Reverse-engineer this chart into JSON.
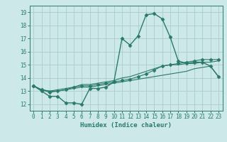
{
  "xlabel": "Humidex (Indice chaleur)",
  "bg_color": "#cce8e8",
  "grid_color": "#aacccc",
  "line_color": "#2a7a6a",
  "xlim": [
    -0.5,
    23.5
  ],
  "ylim": [
    11.5,
    19.5
  ],
  "xticks": [
    0,
    1,
    2,
    3,
    4,
    5,
    6,
    7,
    8,
    9,
    10,
    11,
    12,
    13,
    14,
    15,
    16,
    17,
    18,
    19,
    20,
    21,
    22,
    23
  ],
  "yticks": [
    12,
    13,
    14,
    15,
    16,
    17,
    18,
    19
  ],
  "series": [
    [
      13.4,
      13.0,
      12.6,
      12.6,
      12.1,
      12.1,
      12.0,
      13.2,
      13.2,
      13.3,
      13.7,
      17.0,
      16.5,
      17.2,
      18.8,
      18.9,
      18.5,
      17.1,
      15.3,
      15.1,
      15.2,
      15.2,
      14.9,
      14.1
    ],
    [
      13.4,
      13.1,
      12.9,
      13.0,
      13.1,
      13.3,
      13.4,
      13.4,
      13.5,
      13.6,
      13.7,
      13.8,
      13.9,
      14.1,
      14.3,
      14.6,
      14.9,
      15.0,
      15.1,
      15.2,
      15.3,
      15.4,
      15.4,
      15.4
    ],
    [
      13.4,
      13.1,
      13.0,
      13.1,
      13.2,
      13.3,
      13.5,
      13.5,
      13.6,
      13.7,
      13.8,
      14.0,
      14.1,
      14.3,
      14.5,
      14.7,
      14.9,
      15.0,
      15.0,
      15.1,
      15.1,
      15.2,
      15.2,
      15.3
    ],
    [
      13.4,
      13.1,
      13.0,
      13.0,
      13.1,
      13.2,
      13.3,
      13.3,
      13.4,
      13.5,
      13.6,
      13.7,
      13.8,
      13.9,
      14.0,
      14.1,
      14.2,
      14.3,
      14.4,
      14.5,
      14.7,
      14.8,
      14.9,
      14.1
    ]
  ],
  "markers": [
    "D",
    "D",
    null,
    null
  ],
  "markersizes": [
    2.5,
    2.5,
    0,
    0
  ],
  "linewidths": [
    1.0,
    0.8,
    0.8,
    0.8
  ]
}
